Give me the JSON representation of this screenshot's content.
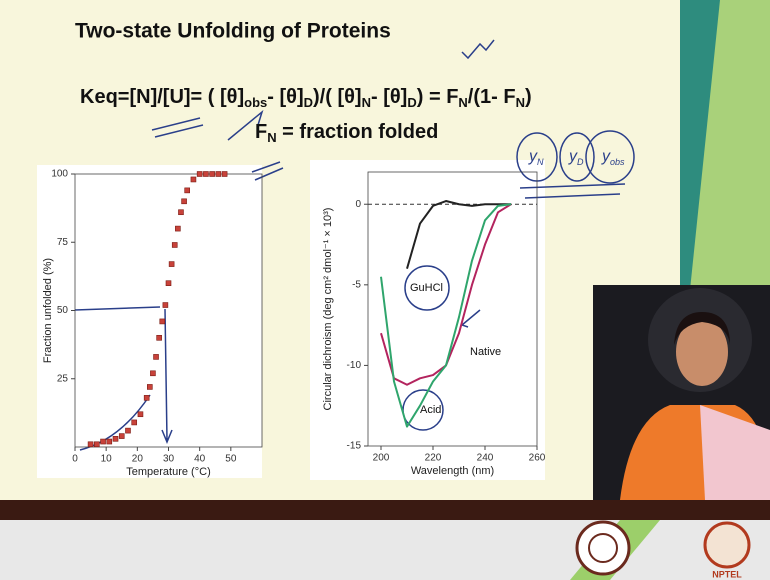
{
  "slide": {
    "title": "Two-state Unfolding of Proteins",
    "equation": [
      "Keq=[N]/[U]= ( [θ]",
      "obs",
      "- [θ]",
      "D",
      ")/( [θ]",
      "N",
      "- [θ]",
      "D",
      ") = F",
      "N",
      "/(1- F",
      "N",
      ")"
    ],
    "definition": [
      "F",
      "N",
      " = fraction folded"
    ],
    "handwriting": [
      [
        "y",
        "N"
      ],
      [
        "y",
        "D"
      ],
      [
        "y",
        "obs"
      ]
    ],
    "logo_text": "NPTEL",
    "charts": [
      {
        "type": "scatter",
        "ylabel": "Fraction unfolded (%)",
        "xlabel": "Temperature (°C)",
        "xlim": [
          0,
          60
        ],
        "xticks": [
          0,
          10,
          20,
          30,
          40,
          50
        ],
        "ylim": [
          0,
          100
        ],
        "yticks": [
          25,
          50,
          75,
          100
        ],
        "color": "#c8423a",
        "x": [
          5,
          7,
          9,
          11,
          13,
          15,
          17,
          19,
          21,
          23,
          24,
          25,
          26,
          27,
          28,
          29,
          30,
          31,
          32,
          33,
          34,
          35,
          36,
          38,
          40,
          42,
          44,
          46,
          48
        ],
        "y": [
          1,
          1,
          2,
          2,
          3,
          4,
          6,
          9,
          12,
          18,
          22,
          27,
          33,
          40,
          46,
          52,
          60,
          67,
          74,
          80,
          86,
          90,
          94,
          98,
          100,
          100,
          100,
          100,
          100
        ]
      },
      {
        "type": "line",
        "ylabel": "Circular dichroism (deg cm² dmol⁻¹ × 10³)",
        "xlabel": "Wavelength (nm)",
        "xlim": [
          195,
          260
        ],
        "xticks": [
          200,
          220,
          240,
          260
        ],
        "ylim": [
          -15,
          2
        ],
        "yticks": [
          -15,
          -10,
          -5,
          0
        ],
        "x": [
          200,
          205,
          210,
          215,
          220,
          225,
          230,
          235,
          240,
          245,
          250
        ],
        "series": [
          {
            "name": "GuHCl",
            "color": "#222222",
            "values": [
              null,
              null,
              -4,
              -1.2,
              -0.1,
              0.2,
              0,
              -0.1,
              0,
              0,
              0
            ]
          },
          {
            "name": "Native",
            "color": "#b3245e",
            "values": [
              -8,
              -10.8,
              -11.2,
              -10.8,
              -10.6,
              -10,
              -8,
              -5,
              -2.5,
              -0.5,
              0
            ]
          },
          {
            "name": "Acid",
            "color": "#2fa56c",
            "values": [
              -4.5,
              -11,
              -13.8,
              -12.5,
              -11,
              -10,
              -7,
              -3.5,
              -1,
              -0.1,
              0
            ]
          }
        ]
      }
    ]
  }
}
